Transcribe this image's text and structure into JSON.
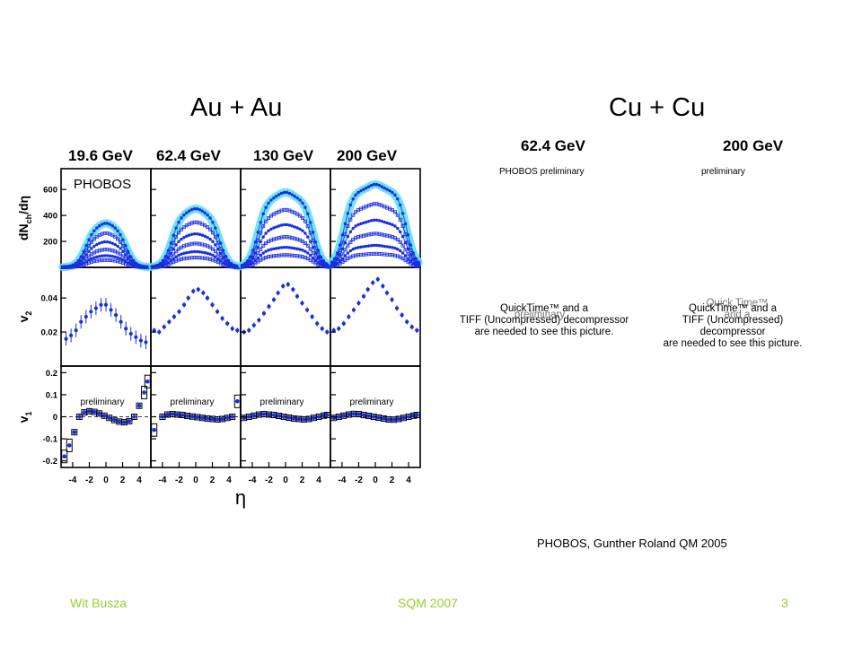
{
  "slide": {
    "title_left": "Au + Au",
    "title_right": "Cu + Cu",
    "credit": "PHOBOS, Gunther Roland QM 2005",
    "footer": {
      "author": "Wit Busza",
      "conference": "SQM 2007",
      "page": "3"
    },
    "accent_color": "#99cc33"
  },
  "chart_data": [
    {
      "type": "scatter",
      "experiment_label": "PHOBOS",
      "panels_energy": [
        "19.6 GeV",
        "62.4 GeV",
        "130 GeV",
        "200 GeV"
      ],
      "xlabel": "η",
      "x_ticks": [
        "-4",
        "-2",
        "0",
        "2",
        "4"
      ],
      "xlim": [
        -5.4,
        5.4
      ],
      "rows": [
        {
          "ylabel_main": "dN",
          "ylabel_sub": "ch",
          "ylabel_tail": "/dη",
          "ylim": [
            0,
            760
          ],
          "y_ticks": [
            "200",
            "400",
            "600"
          ],
          "y_tick_values": [
            200,
            400,
            600
          ],
          "series_peaks": [
            [
              345,
              268,
              200,
              140,
              92,
              58
            ],
            [
              455,
              350,
              260,
              185,
              122,
              76
            ],
            [
              580,
              445,
              330,
              235,
              155,
              95
            ],
            [
              640,
              490,
              365,
              260,
              170,
              105
            ]
          ],
          "annotation": ""
        },
        {
          "ylabel_main": "v",
          "ylabel_sub": "2",
          "ylabel_tail": "",
          "ylim": [
            0.0,
            0.058
          ],
          "y_ticks": [
            "0.02",
            "0.04"
          ],
          "y_tick_values": [
            0.02,
            0.04
          ],
          "annotation": ""
        },
        {
          "ylabel_main": "v",
          "ylabel_sub": "1",
          "ylabel_tail": "",
          "ylim": [
            -0.23,
            0.23
          ],
          "y_ticks": [
            "-0.2",
            "-0.1",
            "0",
            "0.1",
            "0.2"
          ],
          "y_tick_values": [
            -0.2,
            -0.1,
            0,
            0.1,
            0.2
          ],
          "annotation": "preliminary"
        }
      ],
      "v2": [
        {
          "x": [
            -4.8,
            -4.2,
            -3.6,
            -3.0,
            -2.4,
            -1.8,
            -1.2,
            -0.6,
            0.0,
            0.6,
            1.2,
            1.8,
            2.4,
            3.0,
            3.6,
            4.2,
            4.8
          ],
          "y": [
            0.016,
            0.018,
            0.021,
            0.026,
            0.029,
            0.032,
            0.034,
            0.036,
            0.036,
            0.033,
            0.03,
            0.026,
            0.022,
            0.019,
            0.017,
            0.015,
            0.014
          ],
          "err": [
            0.004,
            0.004,
            0.004,
            0.004,
            0.004,
            0.004,
            0.004,
            0.004,
            0.004,
            0.004,
            0.004,
            0.004,
            0.004,
            0.004,
            0.004,
            0.004,
            0.004
          ]
        },
        {
          "x": [
            -5.0,
            -4.4,
            -3.8,
            -3.2,
            -2.6,
            -2.0,
            -1.4,
            -0.9,
            -0.3,
            0.3,
            0.9,
            1.4,
            2.0,
            2.6,
            3.2,
            3.8,
            4.4,
            5.0
          ],
          "y": [
            0.021,
            0.02,
            0.023,
            0.026,
            0.029,
            0.032,
            0.036,
            0.04,
            0.044,
            0.045,
            0.043,
            0.04,
            0.036,
            0.032,
            0.028,
            0.025,
            0.022,
            0.021
          ],
          "err": [
            0.0015,
            0.0015,
            0.0015,
            0.0015,
            0.0015,
            0.0015,
            0.0015,
            0.0015,
            0.0015,
            0.0015,
            0.0015,
            0.0015,
            0.0015,
            0.0015,
            0.0015,
            0.0015,
            0.0015,
            0.0015
          ]
        },
        {
          "x": [
            -5.0,
            -4.4,
            -3.8,
            -3.2,
            -2.6,
            -2.0,
            -1.4,
            -0.9,
            -0.3,
            0.3,
            0.9,
            1.4,
            2.0,
            2.6,
            3.2,
            3.8,
            4.4,
            5.0
          ],
          "y": [
            0.02,
            0.021,
            0.024,
            0.027,
            0.031,
            0.035,
            0.039,
            0.043,
            0.047,
            0.048,
            0.045,
            0.041,
            0.037,
            0.033,
            0.029,
            0.025,
            0.022,
            0.02
          ],
          "err": [
            0.0015,
            0.0015,
            0.0015,
            0.0015,
            0.0015,
            0.0015,
            0.0015,
            0.0015,
            0.0015,
            0.0015,
            0.0015,
            0.0015,
            0.0015,
            0.0015,
            0.0015,
            0.0015,
            0.0015,
            0.0015
          ]
        },
        {
          "x": [
            -5.0,
            -4.4,
            -3.8,
            -3.2,
            -2.6,
            -2.0,
            -1.4,
            -0.9,
            -0.3,
            0.3,
            0.9,
            1.4,
            2.0,
            2.6,
            3.2,
            3.8,
            4.4,
            5.0
          ],
          "y": [
            0.021,
            0.022,
            0.025,
            0.029,
            0.033,
            0.037,
            0.041,
            0.045,
            0.049,
            0.051,
            0.047,
            0.043,
            0.039,
            0.034,
            0.03,
            0.026,
            0.023,
            0.021
          ],
          "err": [
            0.0015,
            0.0015,
            0.0015,
            0.0015,
            0.0015,
            0.0015,
            0.0015,
            0.0015,
            0.0015,
            0.0015,
            0.0015,
            0.0015,
            0.0015,
            0.0015,
            0.0015,
            0.0015,
            0.0015,
            0.0015
          ]
        }
      ],
      "v1": [
        {
          "x": [
            -5.0,
            -4.4,
            -3.8,
            -3.2,
            -2.6,
            -2.0,
            -1.4,
            -0.8,
            -0.2,
            0.4,
            1.0,
            1.6,
            2.2,
            2.8,
            3.4,
            4.0,
            4.6,
            5.0
          ],
          "y": [
            -0.18,
            -0.13,
            -0.07,
            0.0,
            0.02,
            0.025,
            0.022,
            0.015,
            0.005,
            -0.005,
            -0.015,
            -0.022,
            -0.025,
            -0.02,
            0.0,
            0.05,
            0.11,
            0.16
          ]
        },
        {
          "x": [
            -5.0,
            -4.0,
            -3.4,
            -2.8,
            -2.2,
            -1.6,
            -1.0,
            -0.4,
            0.2,
            0.8,
            1.4,
            2.0,
            2.6,
            3.2,
            3.8,
            4.4,
            5.0
          ],
          "y": [
            -0.06,
            0.0,
            0.01,
            0.012,
            0.01,
            0.008,
            0.004,
            0.001,
            -0.002,
            -0.005,
            -0.008,
            -0.01,
            -0.012,
            -0.01,
            -0.005,
            0.0,
            0.07
          ]
        },
        {
          "x": [
            -5.0,
            -4.4,
            -3.8,
            -3.2,
            -2.6,
            -2.0,
            -1.4,
            -0.8,
            -0.2,
            0.4,
            1.0,
            1.6,
            2.2,
            2.8,
            3.4,
            4.0,
            4.6,
            5.0
          ],
          "y": [
            -0.005,
            0.0,
            0.005,
            0.01,
            0.012,
            0.01,
            0.008,
            0.004,
            0.0,
            -0.004,
            -0.008,
            -0.01,
            -0.012,
            -0.01,
            -0.005,
            0.0,
            0.005,
            0.008
          ]
        },
        {
          "x": [
            -5.0,
            -4.4,
            -3.8,
            -3.2,
            -2.6,
            -2.0,
            -1.4,
            -0.8,
            -0.2,
            0.4,
            1.0,
            1.6,
            2.2,
            2.8,
            3.4,
            4.0,
            4.6,
            5.0
          ],
          "y": [
            -0.005,
            0.0,
            0.005,
            0.01,
            0.013,
            0.012,
            0.008,
            0.004,
            0.0,
            -0.004,
            -0.008,
            -0.012,
            -0.013,
            -0.01,
            -0.005,
            0.0,
            0.005,
            0.008
          ]
        }
      ]
    },
    {
      "type": "scatter",
      "panels_energy": [
        "62.4 GeV",
        "200 GeV"
      ],
      "labels": [
        "PHOBOS  preliminary",
        "preliminary"
      ],
      "placeholder_lines": [
        "QuickTime™ and a",
        "TIFF (Uncompressed) decompressor",
        "are needed to see this picture."
      ],
      "overlap_text": [
        "preliminary",
        "Quick Time™ and a"
      ]
    }
  ]
}
